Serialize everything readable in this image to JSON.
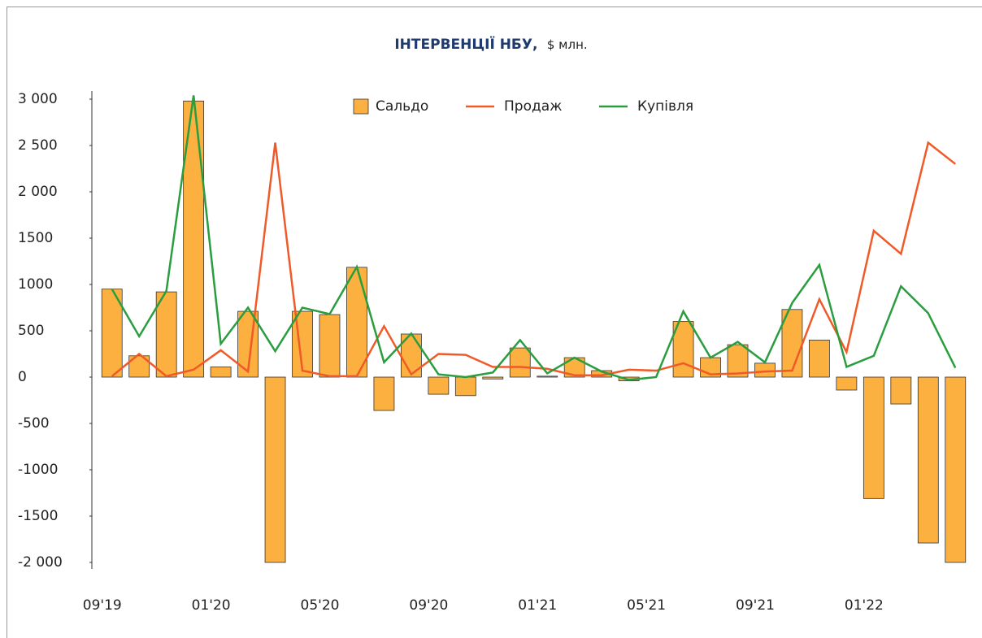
{
  "chart_data": {
    "type": "bar_line",
    "title": "ІНТЕРВЕНЦІЇ НБУ,",
    "subtitle": "$ млн.",
    "categories": [
      "09'19",
      null,
      null,
      null,
      "01'20",
      null,
      null,
      null,
      "05'20",
      null,
      null,
      null,
      "09'20",
      null,
      null,
      null,
      "01'21",
      null,
      null,
      null,
      "05'21",
      null,
      null,
      null,
      "09'21",
      null,
      null,
      null,
      "01'22",
      null,
      null,
      null
    ],
    "series": [
      {
        "name": "Сальдо",
        "kind": "bar",
        "color": "#fbb040",
        "values": [
          950,
          230,
          920,
          2980,
          110,
          710,
          -2000,
          710,
          675,
          1185,
          -360,
          465,
          -185,
          -200,
          -20,
          315,
          10,
          210,
          70,
          -40,
          0,
          600,
          210,
          350,
          150,
          730,
          400,
          -140,
          -1310,
          -290,
          -1790,
          -2000
        ]
      },
      {
        "name": "Продаж",
        "kind": "line",
        "color": "#f05a28",
        "values": [
          10,
          250,
          10,
          80,
          290,
          60,
          2530,
          70,
          10,
          10,
          550,
          30,
          250,
          240,
          110,
          110,
          90,
          20,
          20,
          80,
          70,
          150,
          30,
          40,
          60,
          70,
          840,
          270,
          1580,
          1330,
          2530,
          2300
        ]
      },
      {
        "name": "Купівля",
        "kind": "line",
        "color": "#2a9d3f",
        "values": [
          950,
          440,
          930,
          3040,
          360,
          750,
          280,
          750,
          680,
          1190,
          160,
          470,
          30,
          0,
          50,
          400,
          40,
          210,
          60,
          -30,
          0,
          710,
          210,
          380,
          160,
          800,
          1210,
          110,
          230,
          980,
          690,
          100
        ]
      }
    ],
    "ylim": [
      -2000,
      3000
    ],
    "yticks": [
      {
        "value": 3000,
        "label": "3 000"
      },
      {
        "value": 2500,
        "label": "2 500"
      },
      {
        "value": 2000,
        "label": "2 000"
      },
      1500,
      1000,
      500,
      0,
      -500,
      -1000,
      -1500,
      {
        "value": -2000,
        "label": "-2 000"
      }
    ],
    "legend": "top"
  }
}
